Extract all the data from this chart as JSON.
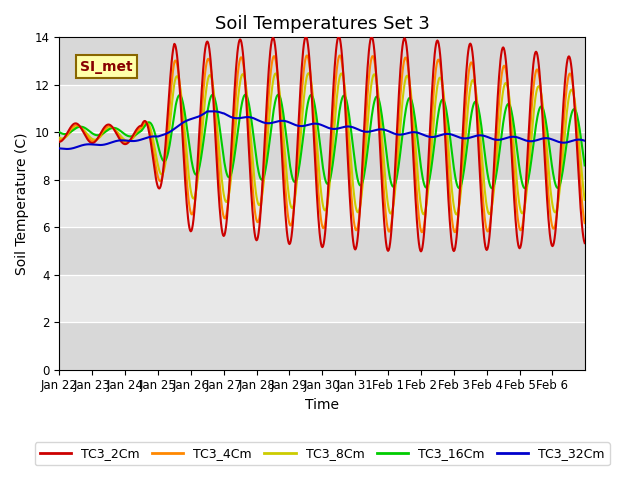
{
  "title": "Soil Temperatures Set 3",
  "xlabel": "Time",
  "ylabel": "Soil Temperature (C)",
  "ylim": [
    0,
    14
  ],
  "yticks": [
    0,
    2,
    4,
    6,
    8,
    10,
    12,
    14
  ],
  "date_labels": [
    "Jan 22",
    "Jan 23",
    "Jan 24",
    "Jan 25",
    "Jan 26",
    "Jan 27",
    "Jan 28",
    "Jan 29",
    "Jan 30",
    "Jan 31",
    "Feb 1",
    "Feb 2",
    "Feb 3",
    "Feb 4",
    "Feb 5",
    "Feb 6"
  ],
  "series_colors": {
    "TC3_2Cm": "#cc0000",
    "TC3_4Cm": "#ff8800",
    "TC3_8Cm": "#cccc00",
    "TC3_16Cm": "#00cc00",
    "TC3_32Cm": "#0000cc"
  },
  "annotation_text": "SI_met",
  "annotation_bg": "#ffffaa",
  "annotation_border": "#886600",
  "annotation_text_color": "#880000",
  "bg_color": "#ffffff",
  "plot_bg_color": "#e8e8e8",
  "grid_color": "#ffffff",
  "title_fontsize": 13,
  "axis_label_fontsize": 10,
  "tick_fontsize": 8.5,
  "legend_fontsize": 9,
  "line_width": 1.5
}
